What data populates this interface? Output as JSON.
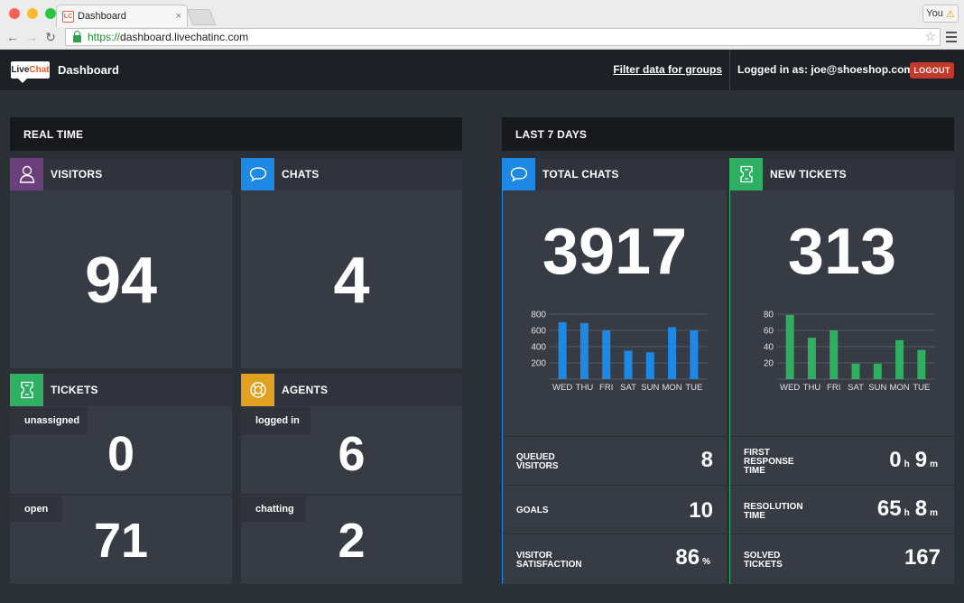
{
  "browser": {
    "tab_title": "Dashboard",
    "tab_favicon": "LC",
    "tab_close": "×",
    "user_button": "You",
    "url_scheme": "https://",
    "url_host": "dashboard.livechatinc.com"
  },
  "header": {
    "logo_part1": "Live",
    "logo_part2": "Chat",
    "title": "Dashboard",
    "filter_link": "Filter data for groups",
    "logged_in_label": "Logged in as:",
    "user_email": "joe@shoeshop.com",
    "logout_label": "LOGOUT"
  },
  "realtime": {
    "section_title": "REAL TIME",
    "visitors": {
      "title": "VISITORS",
      "value": "94",
      "icon": "user-icon",
      "color": "#6b3f7c"
    },
    "chats": {
      "title": "CHATS",
      "value": "4",
      "icon": "chat-bubble-icon",
      "color": "#1e88e5"
    },
    "tickets": {
      "title": "TICKETS",
      "icon": "ticket-icon",
      "color": "#2eaf62",
      "unassigned_label": "unassigned",
      "unassigned_value": "0",
      "open_label": "open",
      "open_value": "71"
    },
    "agents": {
      "title": "AGENTS",
      "icon": "lifebuoy-icon",
      "color": "#e0a020",
      "logged_in_label": "logged in",
      "logged_in_value": "6",
      "chatting_label": "chatting",
      "chatting_value": "2"
    }
  },
  "last7": {
    "section_title": "LAST 7 DAYS",
    "total_chats": {
      "title": "TOTAL CHATS",
      "value": "3917",
      "icon": "chat-bubble-icon",
      "color": "#1e88e5",
      "queued_label": "QUEUED VISITORS",
      "queued_value": "8",
      "goals_label": "GOALS",
      "goals_value": "10",
      "satisfaction_label": "VISITOR SATISFACTION",
      "satisfaction_value": "86",
      "satisfaction_unit": "%"
    },
    "new_tickets": {
      "title": "NEW TICKETS",
      "value": "313",
      "icon": "ticket-icon",
      "color": "#2eaf62",
      "first_response_label": "FIRST RESPONSE TIME",
      "first_response_h": "0",
      "first_response_m": "9",
      "resolution_label": "RESOLUTION TIME",
      "resolution_h": "65",
      "resolution_m": "8",
      "solved_label": "SOLVED TICKETS",
      "solved_value": "167",
      "unit_h": "h",
      "unit_m": "m"
    }
  },
  "chart_data": [
    {
      "type": "bar",
      "categories": [
        "WED",
        "THU",
        "FRI",
        "SAT",
        "SUN",
        "MON",
        "TUE"
      ],
      "values": [
        700,
        690,
        600,
        350,
        330,
        640,
        600
      ],
      "yticks": [
        200,
        400,
        600,
        800
      ],
      "ylim": [
        0,
        800
      ],
      "color": "#1e88e5",
      "grid": true
    },
    {
      "type": "bar",
      "categories": [
        "WED",
        "THU",
        "FRI",
        "SAT",
        "SUN",
        "MON",
        "TUE"
      ],
      "values": [
        79,
        51,
        60,
        19,
        19,
        48,
        36
      ],
      "yticks": [
        20,
        40,
        60,
        80
      ],
      "ylim": [
        0,
        80
      ],
      "color": "#2eaf62",
      "grid": true
    }
  ]
}
